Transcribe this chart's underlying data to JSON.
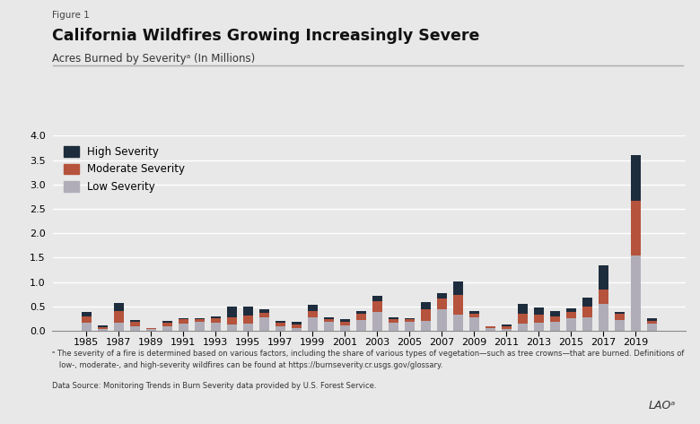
{
  "years": [
    1985,
    1986,
    1987,
    1988,
    1989,
    1990,
    1991,
    1992,
    1993,
    1994,
    1995,
    1996,
    1997,
    1998,
    1999,
    2000,
    2001,
    2002,
    2003,
    2004,
    2005,
    2006,
    2007,
    2008,
    2009,
    2010,
    2011,
    2012,
    2013,
    2014,
    2015,
    2016,
    2017,
    2018,
    2019,
    2020
  ],
  "low": [
    0.17,
    0.04,
    0.17,
    0.1,
    0.03,
    0.1,
    0.15,
    0.18,
    0.17,
    0.13,
    0.15,
    0.27,
    0.1,
    0.05,
    0.27,
    0.19,
    0.11,
    0.22,
    0.38,
    0.17,
    0.18,
    0.2,
    0.44,
    0.33,
    0.27,
    0.05,
    0.04,
    0.15,
    0.17,
    0.18,
    0.25,
    0.28,
    0.55,
    0.22,
    1.55,
    0.14
  ],
  "moderate": [
    0.13,
    0.04,
    0.23,
    0.08,
    0.02,
    0.07,
    0.08,
    0.06,
    0.08,
    0.15,
    0.17,
    0.1,
    0.07,
    0.08,
    0.14,
    0.05,
    0.08,
    0.12,
    0.22,
    0.07,
    0.05,
    0.24,
    0.22,
    0.4,
    0.08,
    0.04,
    0.05,
    0.2,
    0.16,
    0.12,
    0.13,
    0.22,
    0.3,
    0.12,
    1.12,
    0.07
  ],
  "high": [
    0.08,
    0.03,
    0.16,
    0.04,
    0.01,
    0.04,
    0.03,
    0.02,
    0.04,
    0.21,
    0.18,
    0.07,
    0.03,
    0.05,
    0.12,
    0.03,
    0.04,
    0.06,
    0.12,
    0.03,
    0.02,
    0.15,
    0.12,
    0.28,
    0.05,
    0.01,
    0.03,
    0.2,
    0.14,
    0.1,
    0.08,
    0.17,
    0.5,
    0.05,
    0.93,
    0.04
  ],
  "color_low": "#b0adb8",
  "color_moderate": "#b5533c",
  "color_high": "#1e2d3d",
  "background_color": "#e8e8e8",
  "figure_label": "Figure 1",
  "title": "California Wildfires Growing Increasingly Severe",
  "subtitle": "Acres Burned by Severityᵃ (In Millions)",
  "legend_labels": [
    "High Severity",
    "Moderate Severity",
    "Low Severity"
  ],
  "footnote_line1": "ᵃ The severity of a fire is determined based on various factors, including the share of various types of vegetation—such as tree crowns—that are burned. Definitions of",
  "footnote_line2": "   low-, moderate-, and high-severity wildfires can be found at https://burnseverity.cr.usgs.gov/glossary.",
  "data_source": "Data Source: Monitoring Trends in Burn Severity data provided by U.S. Forest Service.",
  "ylim": [
    0,
    4.0
  ],
  "yticks": [
    0.0,
    0.5,
    1.0,
    1.5,
    2.0,
    2.5,
    3.0,
    3.5,
    4.0
  ]
}
